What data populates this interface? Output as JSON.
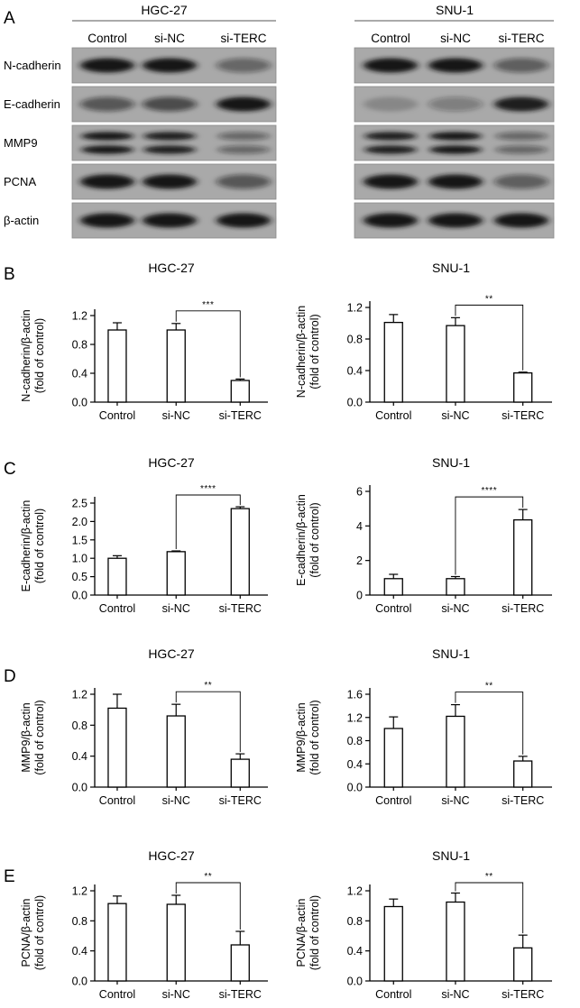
{
  "figure": {
    "panel_letters": [
      "A",
      "B",
      "C",
      "D",
      "E"
    ],
    "cell_lines": [
      "HGC-27",
      "SNU-1"
    ],
    "groups": [
      "Control",
      "si-NC",
      "si-TERC"
    ]
  },
  "western_blot": {
    "proteins": [
      "N-cadherin",
      "E-cadherin",
      "MMP9",
      "PCNA",
      "β-actin"
    ],
    "relative_band_intensity": {
      "HGC-27": {
        "N-cadherin": [
          1.0,
          1.0,
          0.45
        ],
        "E-cadherin": [
          0.55,
          0.62,
          1.0
        ],
        "MMP9": [
          1.0,
          0.95,
          0.45
        ],
        "PCNA": [
          1.0,
          1.0,
          0.55
        ],
        "β-actin": [
          1.0,
          1.0,
          1.0
        ]
      },
      "SNU-1": {
        "N-cadherin": [
          1.0,
          1.0,
          0.5
        ],
        "E-cadherin": [
          0.2,
          0.3,
          0.95
        ],
        "MMP9": [
          0.95,
          1.0,
          0.45
        ],
        "PCNA": [
          1.0,
          1.0,
          0.5
        ],
        "β-actin": [
          1.0,
          1.0,
          1.0
        ]
      }
    }
  },
  "chart_data": [
    {
      "type": "bar",
      "panel": "B",
      "title": "HGC-27",
      "categories": [
        "Control",
        "si-NC",
        "si-TERC"
      ],
      "values": [
        1.0,
        1.0,
        0.3
      ],
      "errors": [
        0.1,
        0.09,
        0.02
      ],
      "ylabel": "N-cadherin/β-actin",
      "ylabel2": "(fold of control)",
      "ylim": [
        0,
        1.3
      ],
      "yticks": [
        "0.0",
        "0.4",
        "0.8",
        "1.2"
      ],
      "ytick_values": [
        0,
        0.4,
        0.8,
        1.2
      ],
      "significance": {
        "from": 1,
        "to": 2,
        "label": "***"
      }
    },
    {
      "type": "bar",
      "panel": "B",
      "title": "SNU-1",
      "categories": [
        "Control",
        "si-NC",
        "si-TERC"
      ],
      "values": [
        1.01,
        0.97,
        0.37
      ],
      "errors": [
        0.1,
        0.1,
        0.01
      ],
      "ylabel": "N-cadherin/β-actin",
      "ylabel2": "(fold of control)",
      "ylim": [
        0,
        1.3
      ],
      "yticks": [
        "0.0",
        "0.4",
        "0.8",
        "1.2"
      ],
      "ytick_values": [
        0,
        0.4,
        0.8,
        1.2
      ],
      "significance": {
        "from": 1,
        "to": 2,
        "label": "**"
      }
    },
    {
      "type": "bar",
      "panel": "C",
      "title": "HGC-27",
      "categories": [
        "Control",
        "si-NC",
        "si-TERC"
      ],
      "values": [
        1.0,
        1.18,
        2.35
      ],
      "errors": [
        0.07,
        0.02,
        0.05
      ],
      "ylabel": "E-cadherin/β-actin",
      "ylabel2": "(fold of control)",
      "ylim": [
        0,
        2.65
      ],
      "yticks": [
        "0.0",
        "0.5",
        "1.0",
        "1.5",
        "2.0",
        "2.5"
      ],
      "ytick_values": [
        0,
        0.5,
        1.0,
        1.5,
        2.0,
        2.5
      ],
      "significance": {
        "from": 1,
        "to": 2,
        "label": "****"
      }
    },
    {
      "type": "bar",
      "panel": "C",
      "title": "SNU-1",
      "categories": [
        "Control",
        "si-NC",
        "si-TERC"
      ],
      "values": [
        0.95,
        0.95,
        4.35
      ],
      "errors": [
        0.25,
        0.12,
        0.6
      ],
      "ylabel": "E-cadherin/β-actin",
      "ylabel2": "(fold of control)",
      "ylim": [
        0,
        6.0
      ],
      "yticks": [
        "0",
        "2",
        "4",
        "6"
      ],
      "ytick_values": [
        0,
        2,
        4,
        6
      ],
      "significance": {
        "from": 1,
        "to": 2,
        "label": "****"
      }
    },
    {
      "type": "bar",
      "panel": "D",
      "title": "HGC-27",
      "categories": [
        "Control",
        "si-NC",
        "si-TERC"
      ],
      "values": [
        1.02,
        0.92,
        0.36
      ],
      "errors": [
        0.18,
        0.15,
        0.07
      ],
      "ylabel": "MMP9/β-actin",
      "ylabel2": "(fold of control)",
      "ylim": [
        0,
        1.3
      ],
      "yticks": [
        "0.0",
        "0.4",
        "0.8",
        "1.2"
      ],
      "ytick_values": [
        0,
        0.4,
        0.8,
        1.2
      ],
      "significance": {
        "from": 1,
        "to": 2,
        "label": "**"
      }
    },
    {
      "type": "bar",
      "panel": "D",
      "title": "SNU-1",
      "categories": [
        "Control",
        "si-NC",
        "si-TERC"
      ],
      "values": [
        1.01,
        1.22,
        0.45
      ],
      "errors": [
        0.2,
        0.2,
        0.08
      ],
      "ylabel": "MMP9/β-actin",
      "ylabel2": "(fold of control)",
      "ylim": [
        0,
        1.7
      ],
      "yticks": [
        "0.0",
        "0.4",
        "0.8",
        "1.2",
        "1.6"
      ],
      "ytick_values": [
        0,
        0.4,
        0.8,
        1.2,
        1.6
      ],
      "significance": {
        "from": 1,
        "to": 2,
        "label": "**"
      }
    },
    {
      "type": "bar",
      "panel": "E",
      "title": "HGC-27",
      "categories": [
        "Control",
        "si-NC",
        "si-TERC"
      ],
      "values": [
        1.03,
        1.02,
        0.48
      ],
      "errors": [
        0.1,
        0.12,
        0.18
      ],
      "ylabel": "PCNA/β-actin",
      "ylabel2": "(fold of control)",
      "ylim": [
        0,
        1.3
      ],
      "yticks": [
        "0.0",
        "0.4",
        "0.8",
        "1.2"
      ],
      "ytick_values": [
        0,
        0.4,
        0.8,
        1.2
      ],
      "significance": {
        "from": 1,
        "to": 2,
        "label": "**"
      }
    },
    {
      "type": "bar",
      "panel": "E",
      "title": "SNU-1",
      "categories": [
        "Control",
        "si-NC",
        "si-TERC"
      ],
      "values": [
        0.99,
        1.05,
        0.44
      ],
      "errors": [
        0.1,
        0.12,
        0.17
      ],
      "ylabel": "PCNA/β-actin",
      "ylabel2": "(fold of control)",
      "ylim": [
        0,
        1.3
      ],
      "yticks": [
        "0.0",
        "0.4",
        "0.8",
        "1.2"
      ],
      "ytick_values": [
        0,
        0.4,
        0.8,
        1.2
      ],
      "significance": {
        "from": 1,
        "to": 2,
        "label": "**"
      }
    }
  ]
}
